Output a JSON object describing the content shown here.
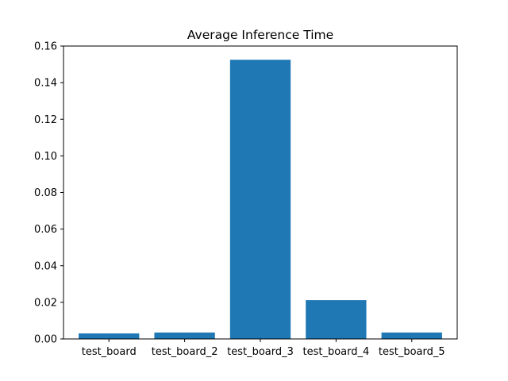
{
  "chart_data": {
    "type": "bar",
    "title": "Average Inference Time",
    "xlabel": "",
    "ylabel": "",
    "categories": [
      "test_board",
      "test_board_2",
      "test_board_3",
      "test_board_4",
      "test_board_5"
    ],
    "values": [
      0.003,
      0.0035,
      0.1525,
      0.0212,
      0.0035
    ],
    "ylim": [
      0,
      0.16
    ],
    "yticks": [
      0.0,
      0.02,
      0.04,
      0.06,
      0.08,
      0.1,
      0.12,
      0.14,
      0.16
    ],
    "ytick_labels": [
      "0.00",
      "0.02",
      "0.04",
      "0.06",
      "0.08",
      "0.10",
      "0.12",
      "0.14",
      "0.16"
    ],
    "grid": false,
    "bar_color": "#1f77b4"
  }
}
